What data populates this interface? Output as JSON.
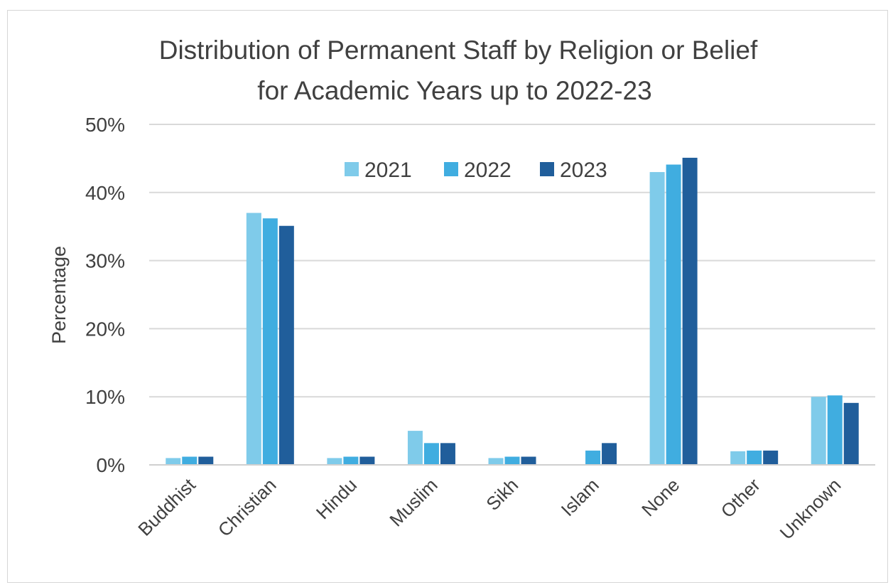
{
  "chart_data": {
    "type": "bar",
    "title_lines": [
      "Distribution of Permanent Staff by Religion or Belief",
      "for Academic Years up to 2022-23"
    ],
    "ylabel": "Percentage",
    "xlabel": "",
    "categories": [
      "Buddhist",
      "Christian",
      "Hindu",
      "Muslim",
      "Sikh",
      "Islam",
      "None",
      "Other",
      "Unknown"
    ],
    "ylim": [
      0,
      50
    ],
    "yticks": [
      0,
      10,
      20,
      30,
      40,
      50
    ],
    "ytick_labels": [
      "0%",
      "10%",
      "20%",
      "30%",
      "40%",
      "50%"
    ],
    "grid": true,
    "legend_position": "top-center",
    "series": [
      {
        "name": "2021",
        "color": "#7fcbea",
        "values": [
          1,
          37,
          1,
          5,
          1,
          0,
          43,
          2,
          10
        ]
      },
      {
        "name": "2022",
        "color": "#40ade0",
        "values": [
          1.2,
          36.2,
          1.2,
          3.2,
          1.2,
          2.1,
          44.1,
          2.1,
          10.2
        ]
      },
      {
        "name": "2023",
        "color": "#205e9b",
        "values": [
          1.2,
          35.1,
          1.2,
          3.2,
          1.2,
          3.2,
          45.1,
          2.1,
          9.1
        ]
      }
    ]
  }
}
